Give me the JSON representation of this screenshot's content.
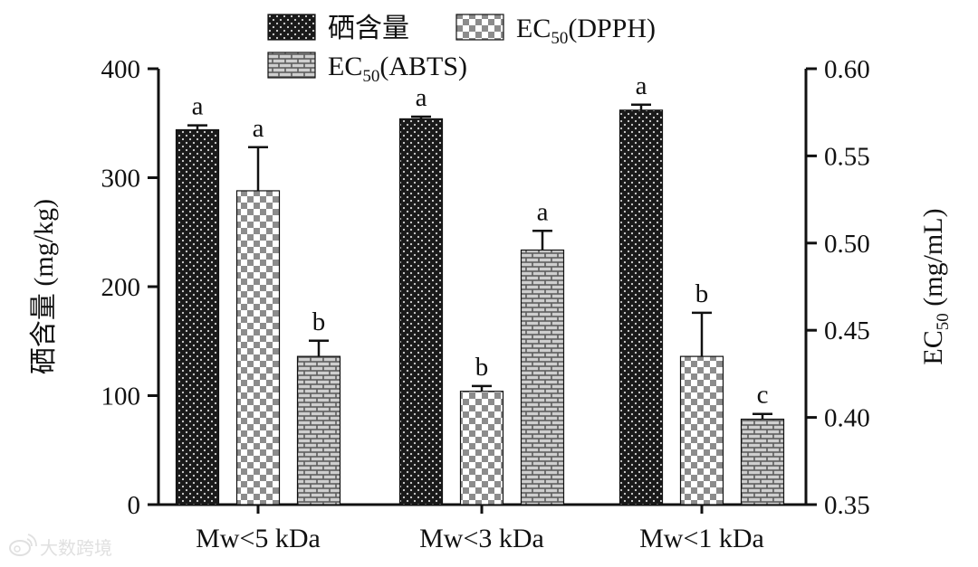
{
  "chart_data": {
    "type": "bar",
    "categories": [
      "Mw<5 kDa",
      "Mw<3 kDa",
      "Mw<1 kDa"
    ],
    "y_left": {
      "label": "硒含量 (mg/kg)",
      "range": [
        0,
        400
      ],
      "ticks": [
        "0",
        "100",
        "200",
        "300",
        "400"
      ]
    },
    "y_right": {
      "label_main": "EC",
      "label_sub": "50",
      "label_rest": " (mg/mL)",
      "range": [
        0.35,
        0.6
      ],
      "ticks": [
        "0.35",
        "0.40",
        "0.45",
        "0.50",
        "0.55",
        "0.60"
      ]
    },
    "series": [
      {
        "name": "硒含量",
        "legend_main": "硒含量",
        "legend_sub": "",
        "legend_rest": "",
        "axis": "left",
        "pattern": "dots",
        "values": [
          344,
          354,
          362
        ],
        "errors": [
          4,
          2,
          5
        ],
        "letters": [
          "a",
          "a",
          "a"
        ]
      },
      {
        "name": "EC50(DPPH)",
        "legend_main": "EC",
        "legend_sub": "50",
        "legend_rest": "(DPPH)",
        "axis": "right",
        "pattern": "checker",
        "values": [
          0.53,
          0.415,
          0.435
        ],
        "errors": [
          0.025,
          0.003,
          0.025
        ],
        "letters": [
          "a",
          "b",
          "b"
        ]
      },
      {
        "name": "EC50(ABTS)",
        "legend_main": "EC",
        "legend_sub": "50",
        "legend_rest": "(ABTS)",
        "axis": "right",
        "pattern": "brick",
        "values": [
          0.435,
          0.496,
          0.399
        ],
        "errors": [
          0.009,
          0.011,
          0.003
        ],
        "letters": [
          "b",
          "a",
          "c"
        ]
      }
    ],
    "legend": "top"
  },
  "watermark": "大数跨境",
  "colors": {
    "bar_dark": "#1a1a1a",
    "checker_gray": "#8c8c8c",
    "brick_gray": "#5e5e5e",
    "axis": "#111111"
  },
  "icons": {
    "watermark": "weibo-icon"
  }
}
